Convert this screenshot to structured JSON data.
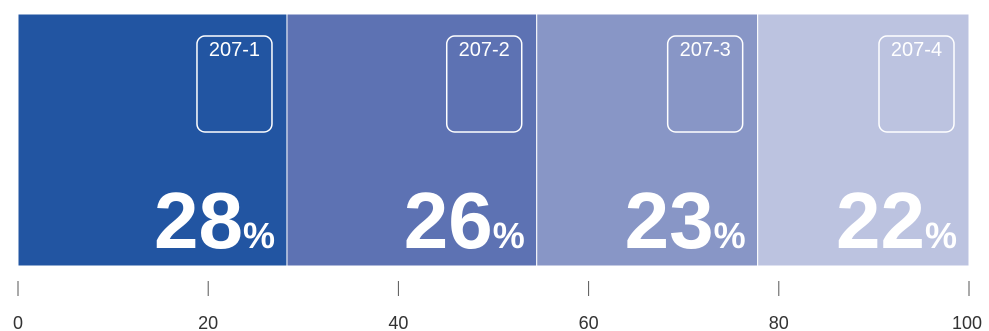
{
  "chart_data": {
    "type": "bar",
    "orientation": "horizontal-stacked",
    "categories": [
      "207-1",
      "207-2",
      "207-3",
      "207-4"
    ],
    "values": [
      28,
      26,
      23,
      22
    ],
    "value_suffix": "%",
    "colors": [
      "#2255a2",
      "#5d72b3",
      "#8896c6",
      "#bcc3e0"
    ],
    "xlim": [
      0,
      100
    ],
    "x_ticks": [
      0,
      20,
      40,
      60,
      80,
      100
    ],
    "x_tick_labels": [
      "0",
      "20",
      "40",
      "60",
      "80",
      "100"
    ],
    "title": "",
    "xlabel": "",
    "ylabel": "",
    "grid": false,
    "legend": "none"
  }
}
